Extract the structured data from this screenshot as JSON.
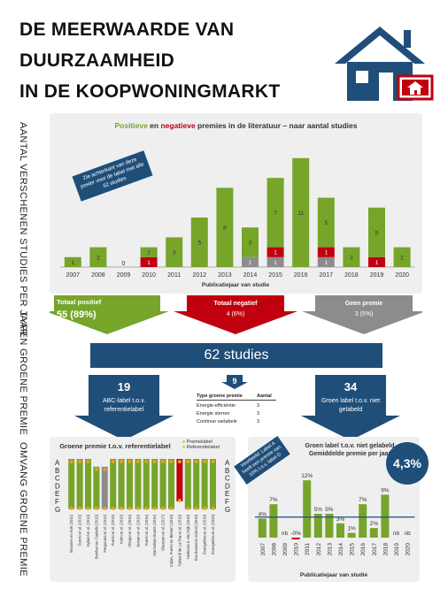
{
  "title_lines": [
    "DE MEERWAARDE VAN",
    "DUURZAAMHEID",
    "IN DE KOOPWONINGMARKT"
  ],
  "side_labels": {
    "studies_per_year": "AANTAL VERSCHENEN STUDIES PER JAAR",
    "premium_types": "TYPEN GROENE PREMIE",
    "premium_size": "OMVANG GROENE PREMIE"
  },
  "top_chart": {
    "title_pos": "Positieve",
    "title_and": " en ",
    "title_neg": "negatieve",
    "title_rest": " premies in de literatuur – naar aantal studies",
    "callout": "Zie achterkant van deze poster voor de tabel met alle 62 studies",
    "xlabel": "Publicatiejaar van studie"
  },
  "chart_data": [
    {
      "type": "bar",
      "stacked": true,
      "categories": [
        "2007",
        "2008",
        "2009",
        "2010",
        "2011",
        "2012",
        "2013",
        "2014",
        "2015",
        "2016",
        "2017",
        "2018",
        "2019",
        "2020"
      ],
      "series": [
        {
          "color": "#76a52a",
          "values": [
            1,
            2,
            0,
            1,
            3,
            5,
            8,
            3,
            7,
            11,
            5,
            2,
            5,
            2
          ]
        },
        {
          "color": "#c0000e",
          "values": [
            0,
            0,
            0,
            1,
            0,
            0,
            0,
            0,
            1,
            0,
            1,
            0,
            1,
            0
          ]
        },
        {
          "color": "#8c8c8c",
          "values": [
            0,
            0,
            0,
            0,
            0,
            0,
            0,
            1,
            1,
            0,
            1,
            0,
            0,
            0
          ]
        }
      ],
      "xlabel": "Publicatiejaar van studie",
      "legend": "none"
    },
    {
      "type": "bar",
      "title": "Groen label t.o.v. niet gelabeld",
      "subtitle": "Gemiddelde premie per jaar",
      "categories": [
        "2007",
        "2008",
        "2009",
        "2010",
        "2011",
        "2012",
        "2013",
        "2014",
        "2015",
        "2016",
        "2017",
        "2018",
        "2019",
        "2020"
      ],
      "values": [
        4,
        7,
        null,
        -0.1,
        12,
        5,
        5,
        3,
        1,
        7,
        2,
        9,
        null,
        null
      ],
      "labels": [
        "4%",
        "7%",
        "nb",
        "-0%",
        "12%",
        "5%",
        "5%",
        "3%",
        "1%",
        "7%",
        "2%",
        "9%",
        "nb",
        "nb"
      ],
      "average": 4.3,
      "xlabel": "Publicatiejaar van studie"
    }
  ],
  "summary": {
    "pos_label": "Totaal positief",
    "pos_value": "55 (89%)",
    "neg_label": "Totaal negatief",
    "neg_value": "4 (6%)",
    "none_label": "Geen premie",
    "none_value": "3 (5%)",
    "total": "62 studies"
  },
  "types": {
    "left_count": "19",
    "left_text": "ABC-label t.o.v. referentielabel",
    "mid_count": "9",
    "right_count": "34",
    "right_text": "Groen label t.o.v. niet gelabeld",
    "table_header": [
      "Type groene premie",
      "Aantal"
    ],
    "table_rows": [
      [
        "Energie-efficiëntie",
        "3"
      ],
      [
        "Energie sterren",
        "3"
      ],
      [
        "Continue variabele",
        "3"
      ]
    ]
  },
  "left_chart": {
    "title": "Groene premie t.o.v. referentielabel",
    "legend_premium": "Premielabel",
    "legend_reference": "Referentielabel",
    "letters": [
      "A",
      "B",
      "C",
      "D",
      "E",
      "F",
      "G"
    ],
    "studies": [
      "Brounen en Kok (2011)",
      "Fuerst et al. (2015)",
      "Hyland et al. (2013)",
      "Bonifaci en Copiello (2015)",
      "Fregonara et al. (2014)",
      "Fuerst et al. (2015)",
      "Kahn et al. (2016)",
      "Chegut et al. (2016)",
      "Jensen et al. (2016)",
      "Fuerst et al. (2016)",
      "Marmolejo-Duarte (2016)",
      "Olaussen et al. (2017)",
      "Cajias, Fuerst en Bienert (2019)",
      "Taltavull de La Paz et al. (2019)",
      "Hoekstra & Van Dijk (2019)",
      "Tias Business School (2019)",
      "Evangelista et al. (2019)",
      "Evangelista et al. (2020)"
    ]
  },
  "right_chart": {
    "callout": "Voorbeeld: Label A heeft een premie van 10% t.o.v. label D",
    "avg_badge": "4,3%"
  }
}
